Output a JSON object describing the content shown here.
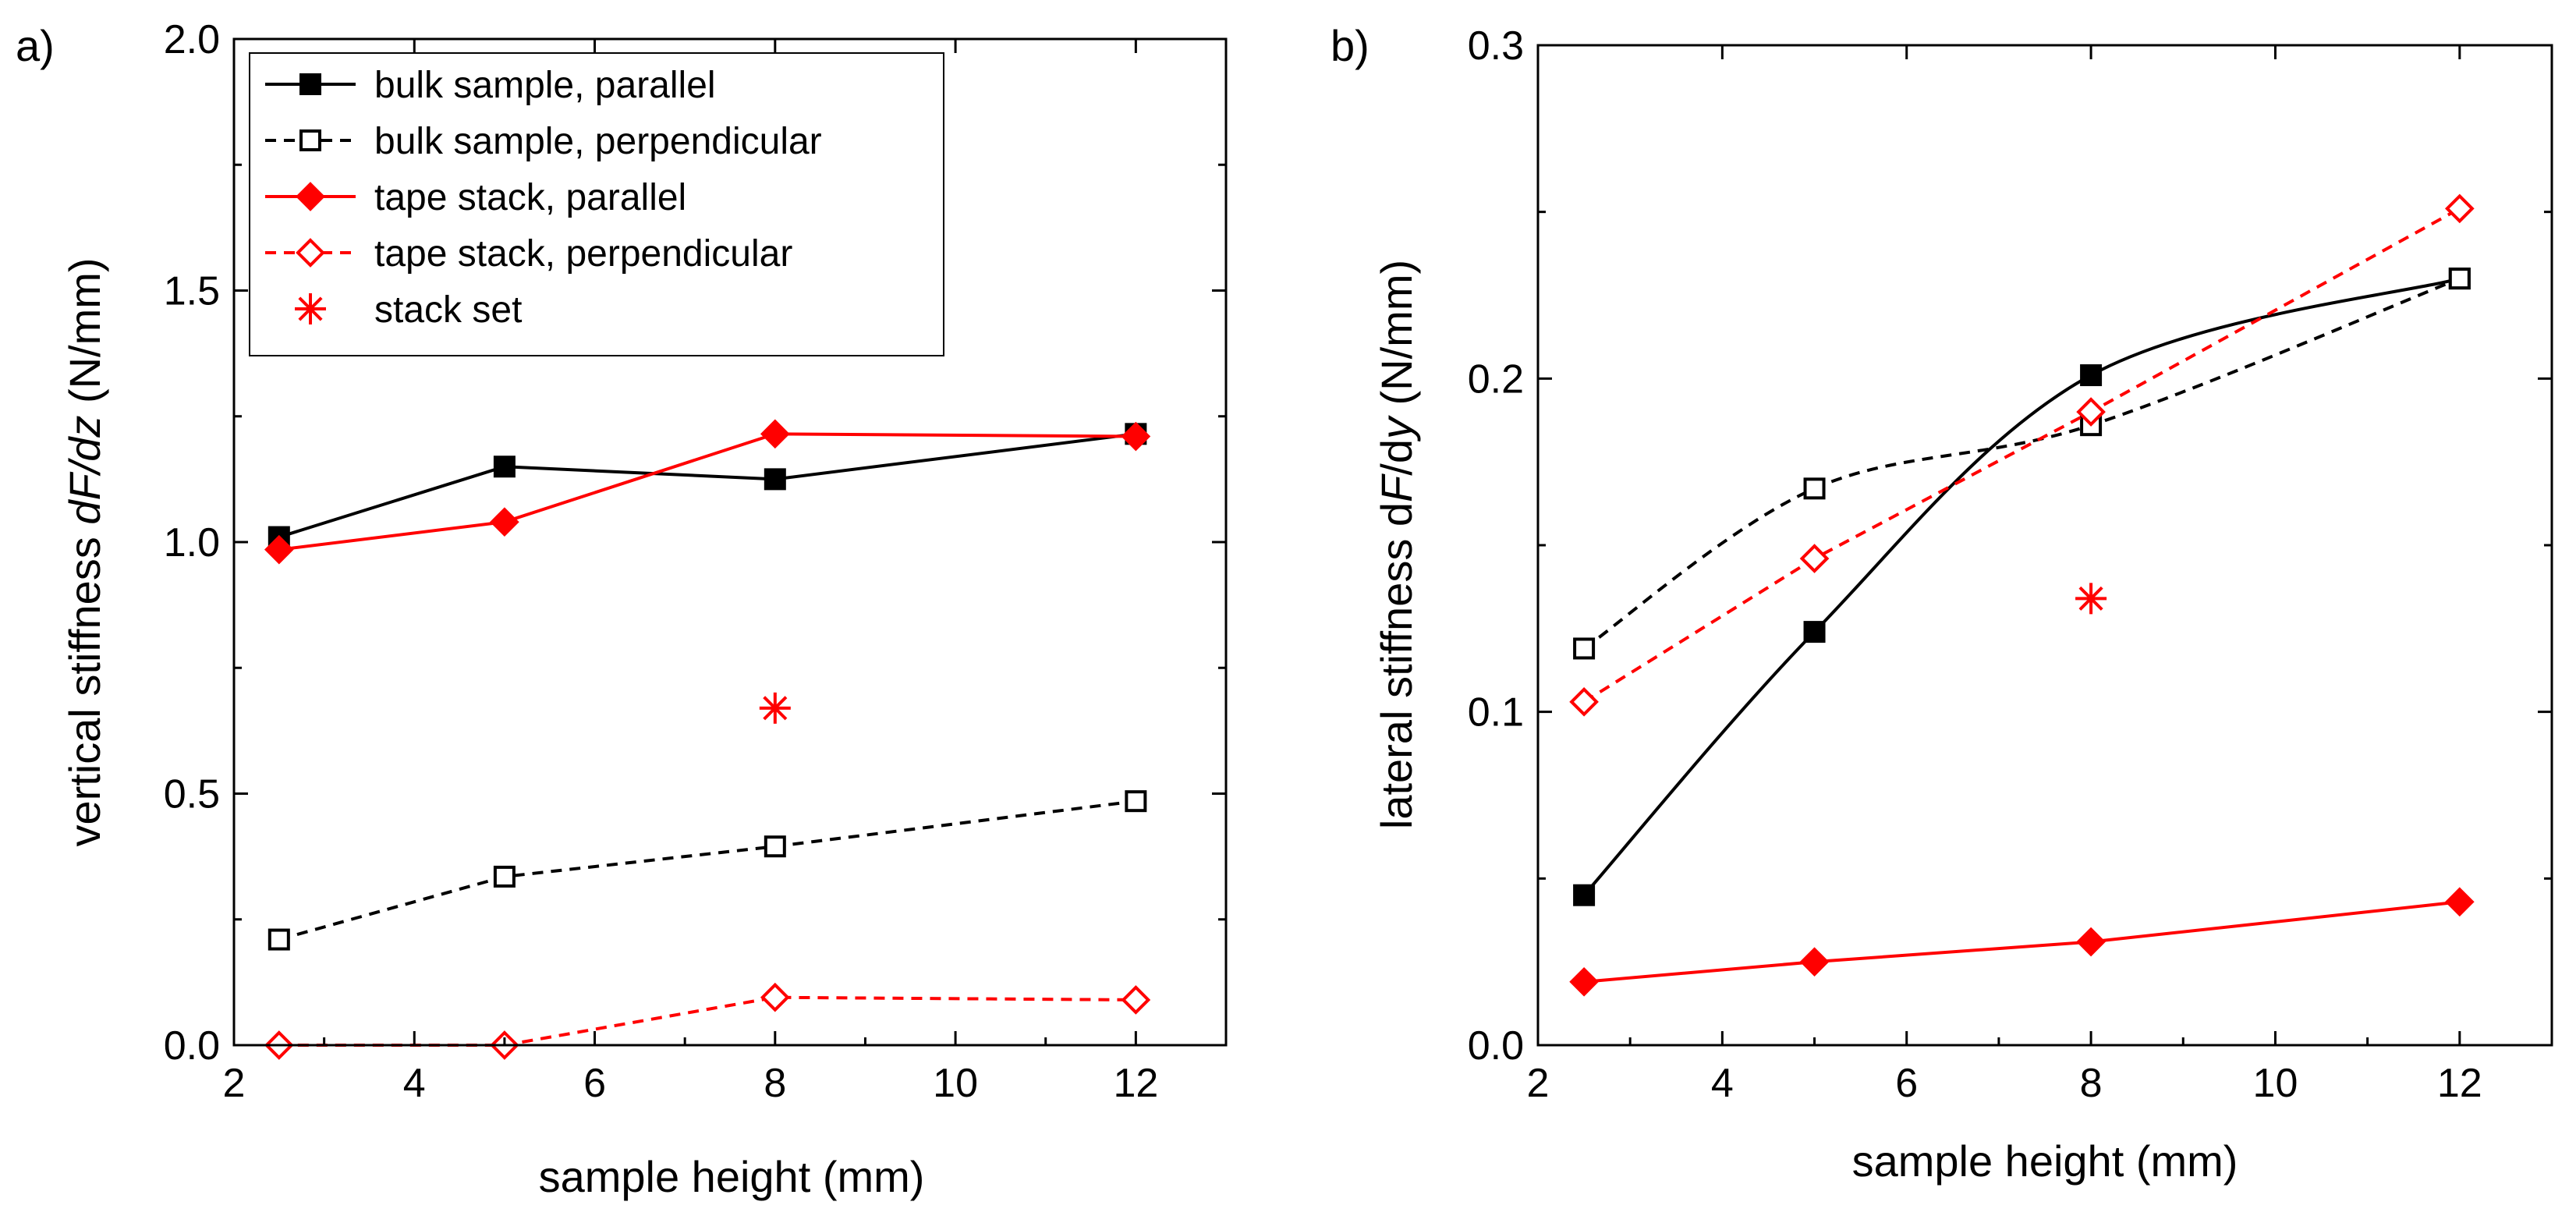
{
  "colors": {
    "black": "#000000",
    "red": "#ff0000"
  },
  "chart_data": [
    {
      "panel_label": "a)",
      "type": "line",
      "xlabel": "sample height (mm)",
      "ylabel": {
        "prefix": "vertical stiffness ",
        "italic": "dF/dz",
        "suffix": " (N/mm)"
      },
      "xlim": [
        2,
        13
      ],
      "ylim": [
        0,
        2.0
      ],
      "xticks": [
        2,
        4,
        6,
        8,
        10,
        12
      ],
      "xtick_labels": [
        "2",
        "4",
        "6",
        "8",
        "10",
        "12"
      ],
      "yticks": [
        0,
        0.5,
        1.0,
        1.5,
        2.0
      ],
      "ytick_labels": [
        "0.0",
        "0.5",
        "1.0",
        "1.5",
        "2.0"
      ],
      "legend_position": "top-left",
      "series": [
        {
          "name": "bulk sample, parallel",
          "color": "#000000",
          "dashed": false,
          "marker": "square",
          "filled": true,
          "curve": "straight",
          "x": [
            2.5,
            5,
            8,
            12
          ],
          "y": [
            1.01,
            1.15,
            1.125,
            1.215
          ]
        },
        {
          "name": "bulk sample, perpendicular",
          "color": "#000000",
          "dashed": true,
          "marker": "square",
          "filled": false,
          "curve": "straight",
          "x": [
            2.5,
            5,
            8,
            12
          ],
          "y": [
            0.21,
            0.335,
            0.395,
            0.485
          ]
        },
        {
          "name": "tape stack, parallel",
          "color": "#ff0000",
          "dashed": false,
          "marker": "diamond",
          "filled": true,
          "curve": "straight",
          "x": [
            2.5,
            5,
            8,
            12
          ],
          "y": [
            0.985,
            1.04,
            1.215,
            1.21
          ]
        },
        {
          "name": "tape stack, perpendicular",
          "color": "#ff0000",
          "dashed": true,
          "marker": "diamond",
          "filled": false,
          "curve": "straight",
          "x": [
            2.5,
            5,
            8,
            12
          ],
          "y": [
            0.0,
            0.0,
            0.095,
            0.09
          ]
        },
        {
          "name": "stack set",
          "color": "#ff0000",
          "dashed": false,
          "marker": "asterisk",
          "filled": false,
          "curve": "none",
          "x": [
            8
          ],
          "y": [
            0.67
          ]
        }
      ]
    },
    {
      "panel_label": "b)",
      "type": "line",
      "xlabel": "sample height (mm)",
      "ylabel": {
        "prefix": "lateral stiffness d",
        "italic": "F",
        "mid": "/d",
        "italic2": "y",
        "suffix": " (N/mm)"
      },
      "xlim": [
        2,
        13
      ],
      "ylim": [
        0,
        0.3
      ],
      "xticks": [
        2,
        4,
        6,
        8,
        10,
        12
      ],
      "xtick_labels": [
        "2",
        "4",
        "6",
        "8",
        "10",
        "12"
      ],
      "yticks": [
        0,
        0.1,
        0.2,
        0.3
      ],
      "ytick_labels": [
        "0.0",
        "0.1",
        "0.2",
        "0.3"
      ],
      "series": [
        {
          "name": "bulk sample, parallel",
          "color": "#000000",
          "dashed": false,
          "marker": "square",
          "filled": true,
          "curve": "smooth",
          "x": [
            2.5,
            5,
            8,
            12
          ],
          "y": [
            0.045,
            0.124,
            0.201,
            0.23
          ]
        },
        {
          "name": "bulk sample, perpendicular",
          "color": "#000000",
          "dashed": true,
          "marker": "square",
          "filled": false,
          "curve": "smooth",
          "x": [
            2.5,
            5,
            8,
            12
          ],
          "y": [
            0.119,
            0.167,
            0.186,
            0.23
          ]
        },
        {
          "name": "tape stack, parallel",
          "color": "#ff0000",
          "dashed": false,
          "marker": "diamond",
          "filled": true,
          "curve": "straight",
          "x": [
            2.5,
            5,
            8,
            12
          ],
          "y": [
            0.019,
            0.025,
            0.031,
            0.043
          ]
        },
        {
          "name": "tape stack, perpendicular",
          "color": "#ff0000",
          "dashed": true,
          "marker": "diamond",
          "filled": false,
          "curve": "straight",
          "x": [
            2.5,
            5,
            8,
            12
          ],
          "y": [
            0.103,
            0.146,
            0.19,
            0.251
          ]
        },
        {
          "name": "stack set",
          "color": "#ff0000",
          "dashed": false,
          "marker": "asterisk",
          "filled": false,
          "curve": "none",
          "x": [
            8
          ],
          "y": [
            0.134
          ]
        }
      ]
    }
  ]
}
